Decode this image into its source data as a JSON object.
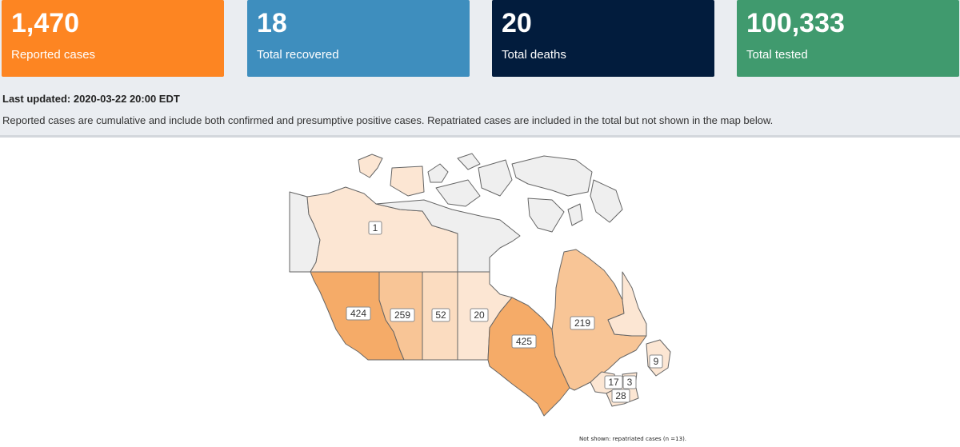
{
  "stats": {
    "reported": {
      "value": "1,470",
      "label": "Reported cases",
      "color": "#fd8522"
    },
    "recovered": {
      "value": "18",
      "label": "Total recovered",
      "color": "#3e8ebe"
    },
    "deaths": {
      "value": "20",
      "label": "Total deaths",
      "color": "#021c3d"
    },
    "tested": {
      "value": "100,333",
      "label": "Total tested",
      "color": "#409a6e"
    }
  },
  "last_updated": "Last updated: 2020-03-22 20:00 EDT",
  "note": "Reported cases are cumulative and include both confirmed and presumptive positive cases. Repatriated cases are included in the total but not shown in the map below.",
  "map": {
    "footnote": "Not shown: repatriated cases (n =13).",
    "regions": [
      {
        "id": "yt",
        "cases": "",
        "fill": "#efefef"
      },
      {
        "id": "nt",
        "cases": "1",
        "fill": "#fce6d3"
      },
      {
        "id": "nu",
        "cases": "",
        "fill": "#efefef"
      },
      {
        "id": "bc",
        "cases": "424",
        "fill": "#f5ab68"
      },
      {
        "id": "ab",
        "cases": "259",
        "fill": "#f8c596"
      },
      {
        "id": "sk",
        "cases": "52",
        "fill": "#fbdcc0"
      },
      {
        "id": "mb",
        "cases": "20",
        "fill": "#fce6d3"
      },
      {
        "id": "on",
        "cases": "425",
        "fill": "#f5ab68"
      },
      {
        "id": "qc",
        "cases": "219",
        "fill": "#f8c596"
      },
      {
        "id": "nl",
        "cases": "9",
        "fill": "#fce6d3"
      },
      {
        "id": "nb",
        "cases": "17",
        "fill": "#fce6d3"
      },
      {
        "id": "pe",
        "cases": "3",
        "fill": "#fce6d3"
      },
      {
        "id": "ns",
        "cases": "28",
        "fill": "#fce6d3"
      }
    ]
  }
}
